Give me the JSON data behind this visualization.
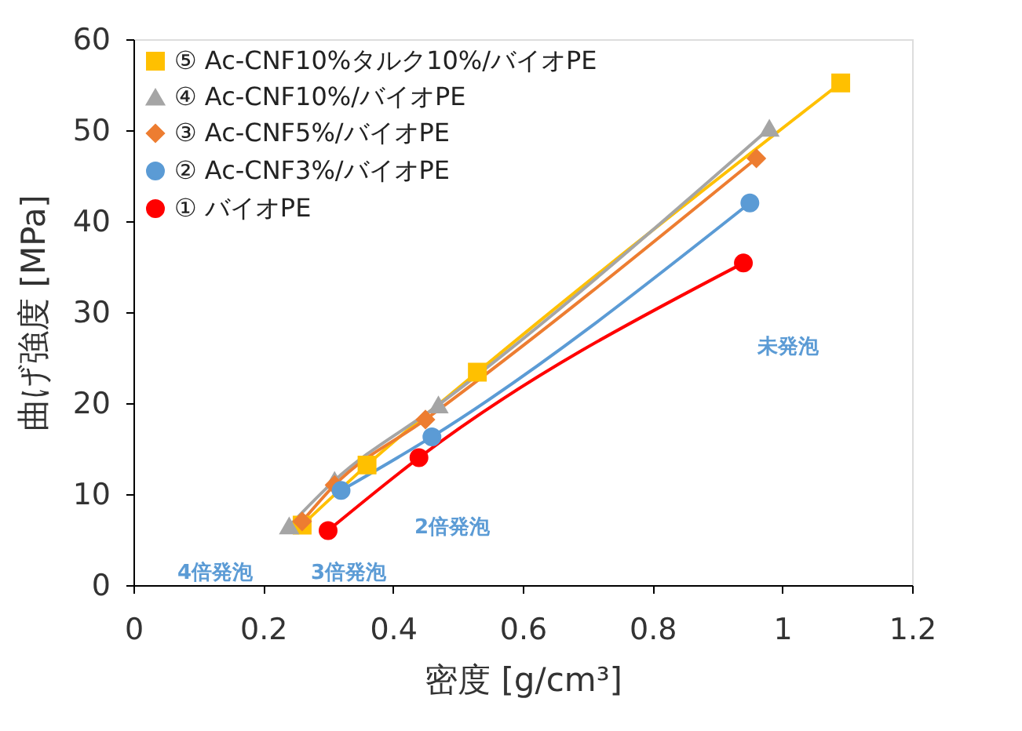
{
  "chart_data": {
    "type": "line",
    "xlabel": "密度 [g/cm³]",
    "ylabel": "曲げ強度 [MPa]",
    "xlim": [
      0,
      1.2
    ],
    "xticks": [
      0,
      0.2,
      0.4,
      0.6,
      0.8,
      1,
      1.2
    ],
    "ylim": [
      0,
      60
    ],
    "yticks": [
      0,
      10,
      20,
      30,
      40,
      50,
      60
    ],
    "grid": false,
    "legend": "top left",
    "line_style": "solid",
    "series": [
      {
        "name": "⑤ Ac-CNF10%タルク10%/バイオPE",
        "color": "#ffc000",
        "marker": "square",
        "x": [
          0.26,
          0.36,
          0.53,
          1.09
        ],
        "values": [
          6.6,
          13.2,
          23.4,
          55.2
        ]
      },
      {
        "name": "④ Ac-CNF10%/バイオPE",
        "color": "#a5a5a5",
        "marker": "triangle",
        "x": [
          0.24,
          0.31,
          0.47,
          0.98
        ],
        "values": [
          6.5,
          11.5,
          19.8,
          50.2
        ]
      },
      {
        "name": "③ Ac-CNF5%/バイオPE",
        "color": "#ed7d31",
        "marker": "diamond",
        "x": [
          0.26,
          0.31,
          0.45,
          0.96
        ],
        "values": [
          7.0,
          11.0,
          18.2,
          46.9
        ]
      },
      {
        "name": "② Ac-CNF3%/バイオPE",
        "color": "#5b9bd5",
        "marker": "circle",
        "x": [
          0.32,
          0.46,
          0.95
        ],
        "values": [
          10.4,
          16.3,
          42.0
        ]
      },
      {
        "name": "① バイオPE",
        "color": "#ff0000",
        "marker": "circle",
        "x": [
          0.3,
          0.44,
          0.94
        ],
        "values": [
          6.0,
          14.0,
          35.4
        ]
      }
    ],
    "annotations": [
      "未発泡",
      "2倍発泡",
      "3倍発泡",
      "4倍発泡"
    ]
  }
}
